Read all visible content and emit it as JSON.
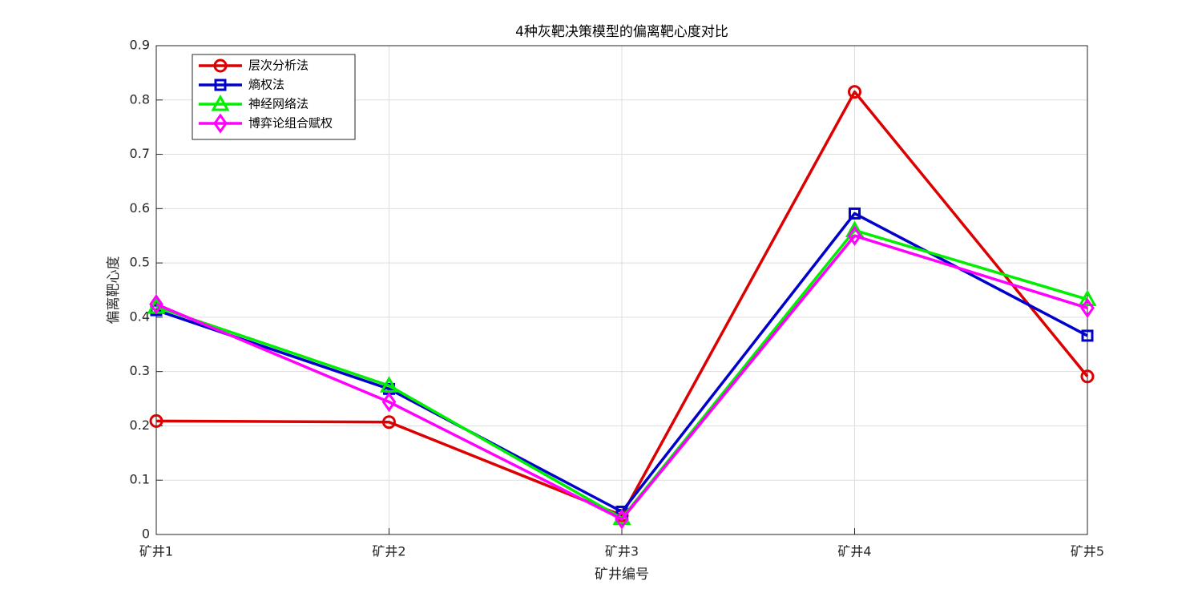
{
  "chart_data": {
    "type": "line",
    "title": "4种灰靶决策模型的偏离靶心度对比",
    "x_label": "矿井编号",
    "y_label": "偏离靶心度",
    "categories": [
      "矿井1",
      "矿井2",
      "矿井3",
      "矿井4",
      "矿井5"
    ],
    "series": [
      {
        "name": "层次分析法",
        "color": "#dd0000",
        "marker": "circle",
        "values": [
          0.209,
          0.207,
          0.035,
          0.815,
          0.291
        ]
      },
      {
        "name": "熵权法",
        "color": "#0000cc",
        "marker": "square",
        "values": [
          0.413,
          0.268,
          0.042,
          0.591,
          0.366
        ]
      },
      {
        "name": "神经网络法",
        "color": "#00ee00",
        "marker": "triangle",
        "values": [
          0.419,
          0.274,
          0.03,
          0.56,
          0.433
        ]
      },
      {
        "name": "博弈论组合赋权",
        "color": "#ff00ff",
        "marker": "diamond",
        "values": [
          0.424,
          0.244,
          0.028,
          0.55,
          0.417
        ]
      }
    ],
    "ylim": [
      0,
      0.9
    ],
    "yticks": [
      0,
      0.1,
      0.2,
      0.3,
      0.4,
      0.5,
      0.6,
      0.7,
      0.8,
      0.9
    ],
    "grid": true,
    "legend": "upper-left"
  }
}
